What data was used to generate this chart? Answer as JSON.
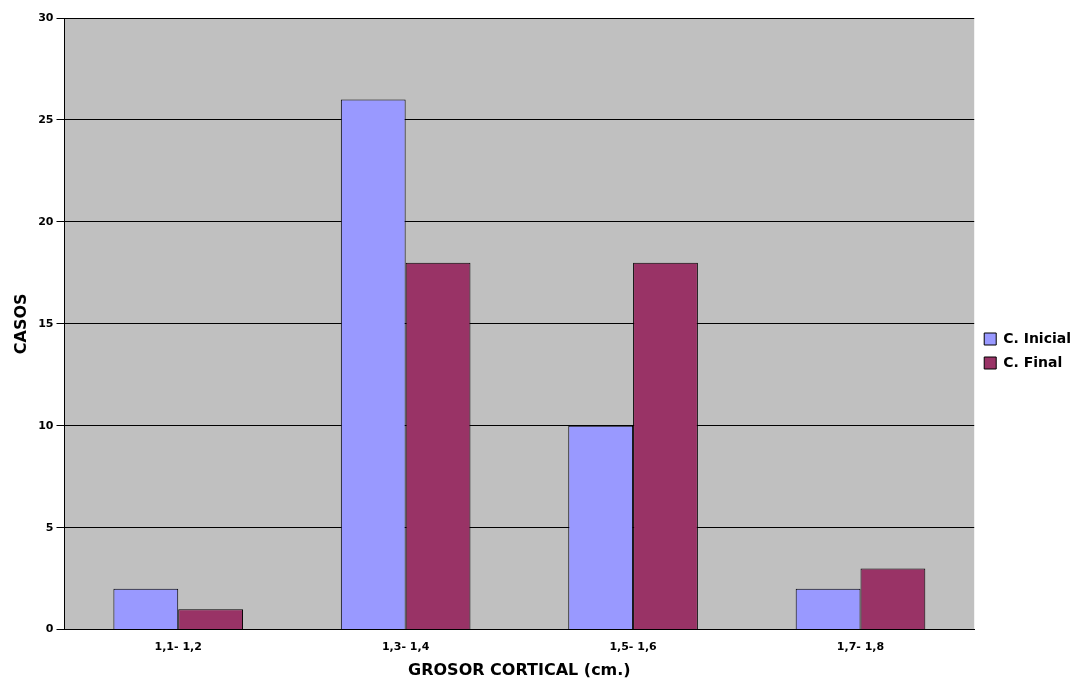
{
  "chart_data": {
    "type": "bar",
    "xlabel": "GROSOR CORTICAL (cm.)",
    "ylabel": "CASOS",
    "categories": [
      "1,1- 1,2",
      "1,3- 1,4",
      "1,5- 1,6",
      "1,7- 1,8"
    ],
    "series": [
      {
        "name": "C. Inicial",
        "color": "#9999ff",
        "values": [
          2,
          26,
          10,
          2
        ]
      },
      {
        "name": "C. Final",
        "color": "#993366",
        "values": [
          1,
          18,
          18,
          3
        ]
      }
    ],
    "ylim": [
      0,
      30
    ],
    "yticks": [
      0,
      5,
      10,
      15,
      20,
      25,
      30
    ],
    "grid": "y",
    "legend": "right"
  }
}
